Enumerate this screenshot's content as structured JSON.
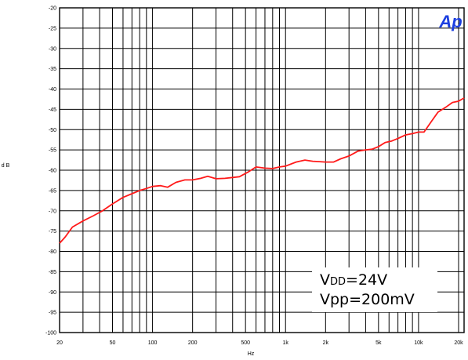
{
  "chart_data": {
    "type": "line",
    "title": "",
    "xlabel": "Hz",
    "ylabel": "d B",
    "x_scale": "log",
    "xlim": [
      20,
      22000
    ],
    "ylim": [
      -100,
      -20
    ],
    "grid": true,
    "y_ticks": [
      "-20",
      "-25",
      "-30",
      "-35",
      "-40",
      "-45",
      "-50",
      "-55",
      "-60",
      "-65",
      "-70",
      "-75",
      "-80",
      "-85",
      "-90",
      "-95",
      "-100"
    ],
    "x_tick_labels": [
      {
        "value": 20,
        "label": "20"
      },
      {
        "value": 50,
        "label": "50"
      },
      {
        "value": 100,
        "label": "100"
      },
      {
        "value": 200,
        "label": "200"
      },
      {
        "value": 500,
        "label": "500"
      },
      {
        "value": 1000,
        "label": "1k"
      },
      {
        "value": 2000,
        "label": "2k"
      },
      {
        "value": 5000,
        "label": "5k"
      },
      {
        "value": 10000,
        "label": "10k"
      },
      {
        "value": 20000,
        "label": "20k"
      }
    ],
    "series": [
      {
        "color": "#ff1a1a",
        "x": [
          20,
          22,
          25,
          30,
          36,
          42,
          50,
          60,
          70,
          80,
          90,
          100,
          115,
          130,
          150,
          175,
          200,
          230,
          260,
          300,
          350,
          400,
          450,
          520,
          600,
          700,
          800,
          900,
          1000,
          1200,
          1400,
          1600,
          1800,
          2000,
          2300,
          2600,
          3000,
          3500,
          4000,
          4500,
          5000,
          5600,
          6300,
          7000,
          8000,
          9000,
          10000,
          11000,
          12500,
          14000,
          16000,
          18000,
          20000,
          22000
        ],
        "y": [
          -78,
          -76.5,
          -74,
          -72.5,
          -71.2,
          -70,
          -68.3,
          -66.7,
          -65.8,
          -65,
          -64.5,
          -64,
          -63.8,
          -64.2,
          -63,
          -62.4,
          -62.4,
          -62,
          -61.5,
          -62.1,
          -62,
          -61.8,
          -61.6,
          -60.5,
          -59.2,
          -59.5,
          -59.6,
          -59.2,
          -59,
          -58,
          -57.5,
          -57.8,
          -57.9,
          -58,
          -58,
          -57.2,
          -56.5,
          -55.3,
          -55,
          -54.8,
          -54.2,
          -53.2,
          -52.8,
          -52.2,
          -51.3,
          -51,
          -50.6,
          -50.6,
          -48,
          -45.7,
          -44.5,
          -43.3,
          -43,
          -42.2
        ]
      }
    ],
    "annotations": {
      "vdd_main": "V",
      "vdd_sub": "DD",
      "vdd_value": "=24V",
      "vpp": "Vpp=200mV"
    },
    "brand": "Ap"
  }
}
